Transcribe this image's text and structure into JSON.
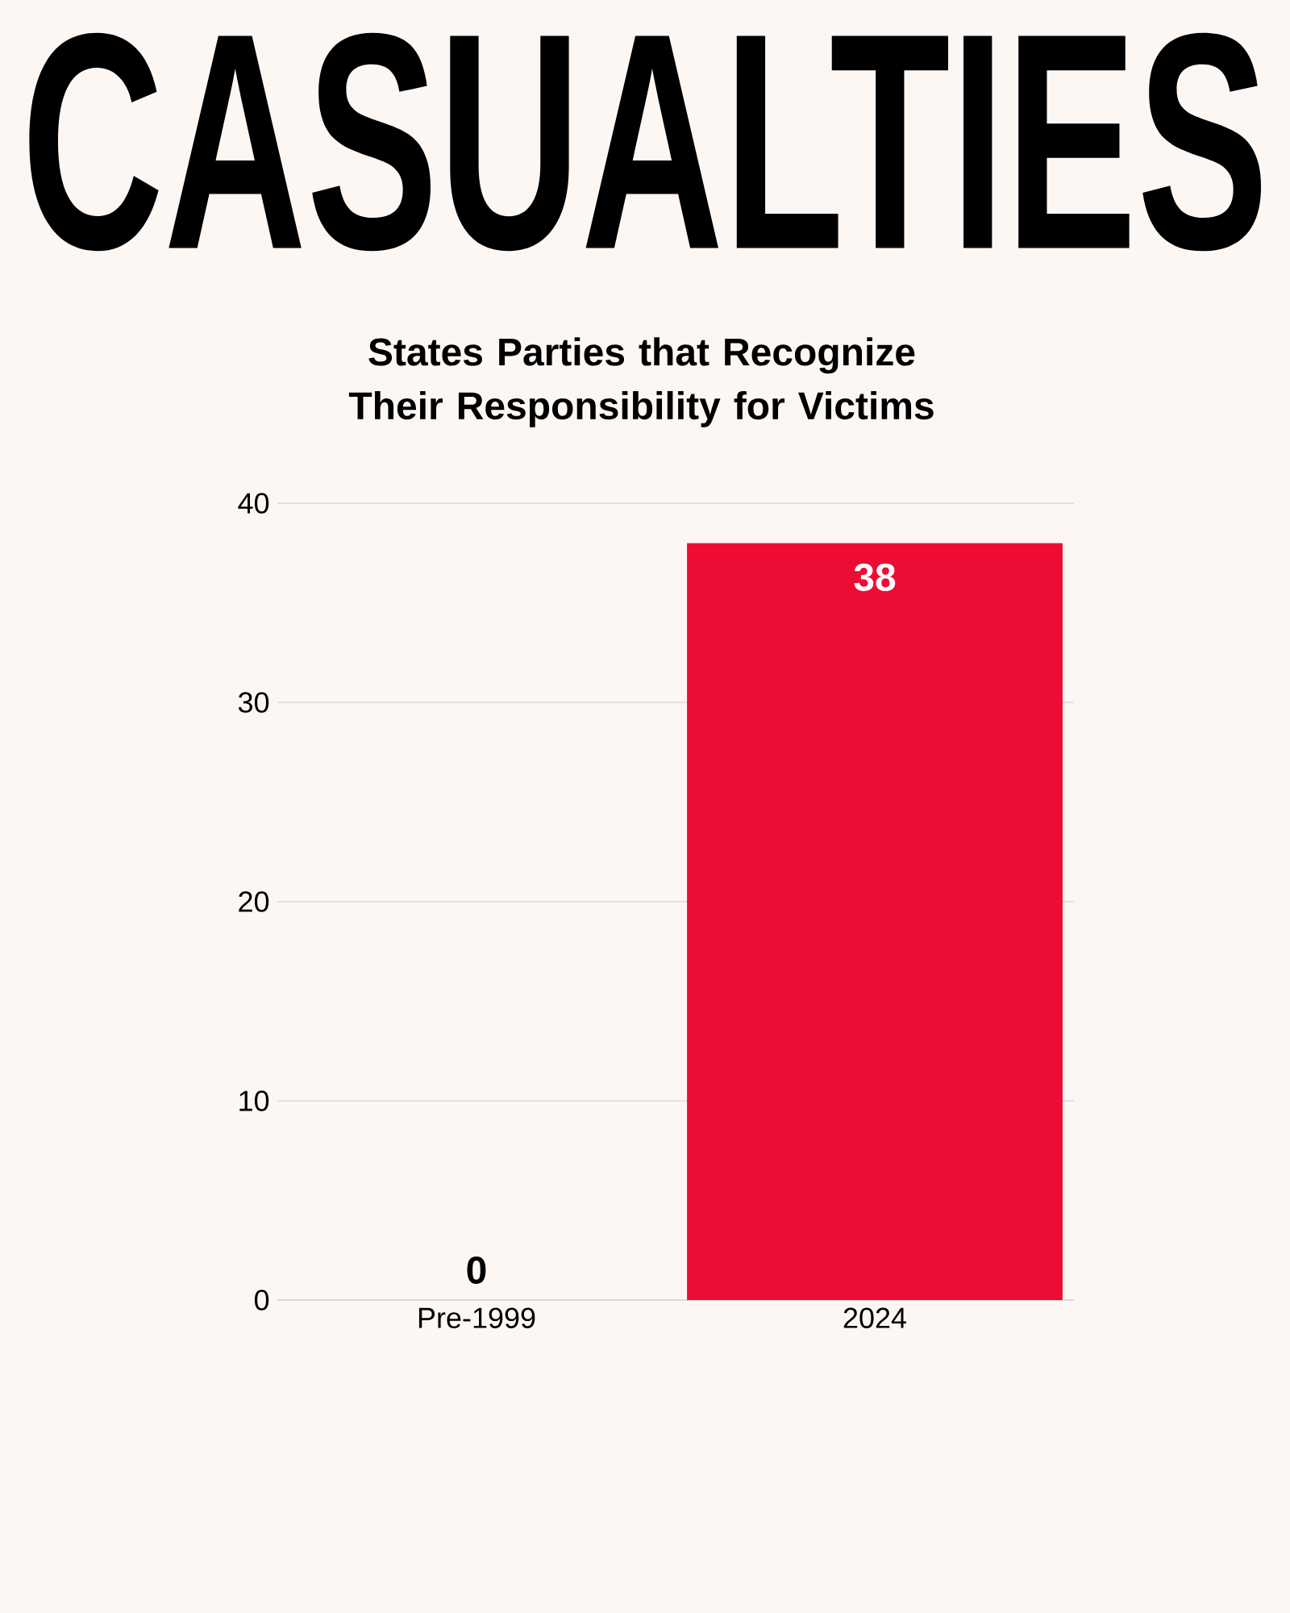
{
  "chart_data": {
    "type": "bar",
    "title": "CASUALTIES",
    "subtitle": "States Parties that Recognize Their Responsibility for Victims",
    "categories": [
      "Pre-1999",
      "2024"
    ],
    "values": [
      0,
      38
    ],
    "color": "#ed0c34",
    "ylim": [
      0,
      40
    ],
    "yticks": [
      0,
      10,
      20,
      30,
      40
    ],
    "grid": "y",
    "data_labels": true
  }
}
